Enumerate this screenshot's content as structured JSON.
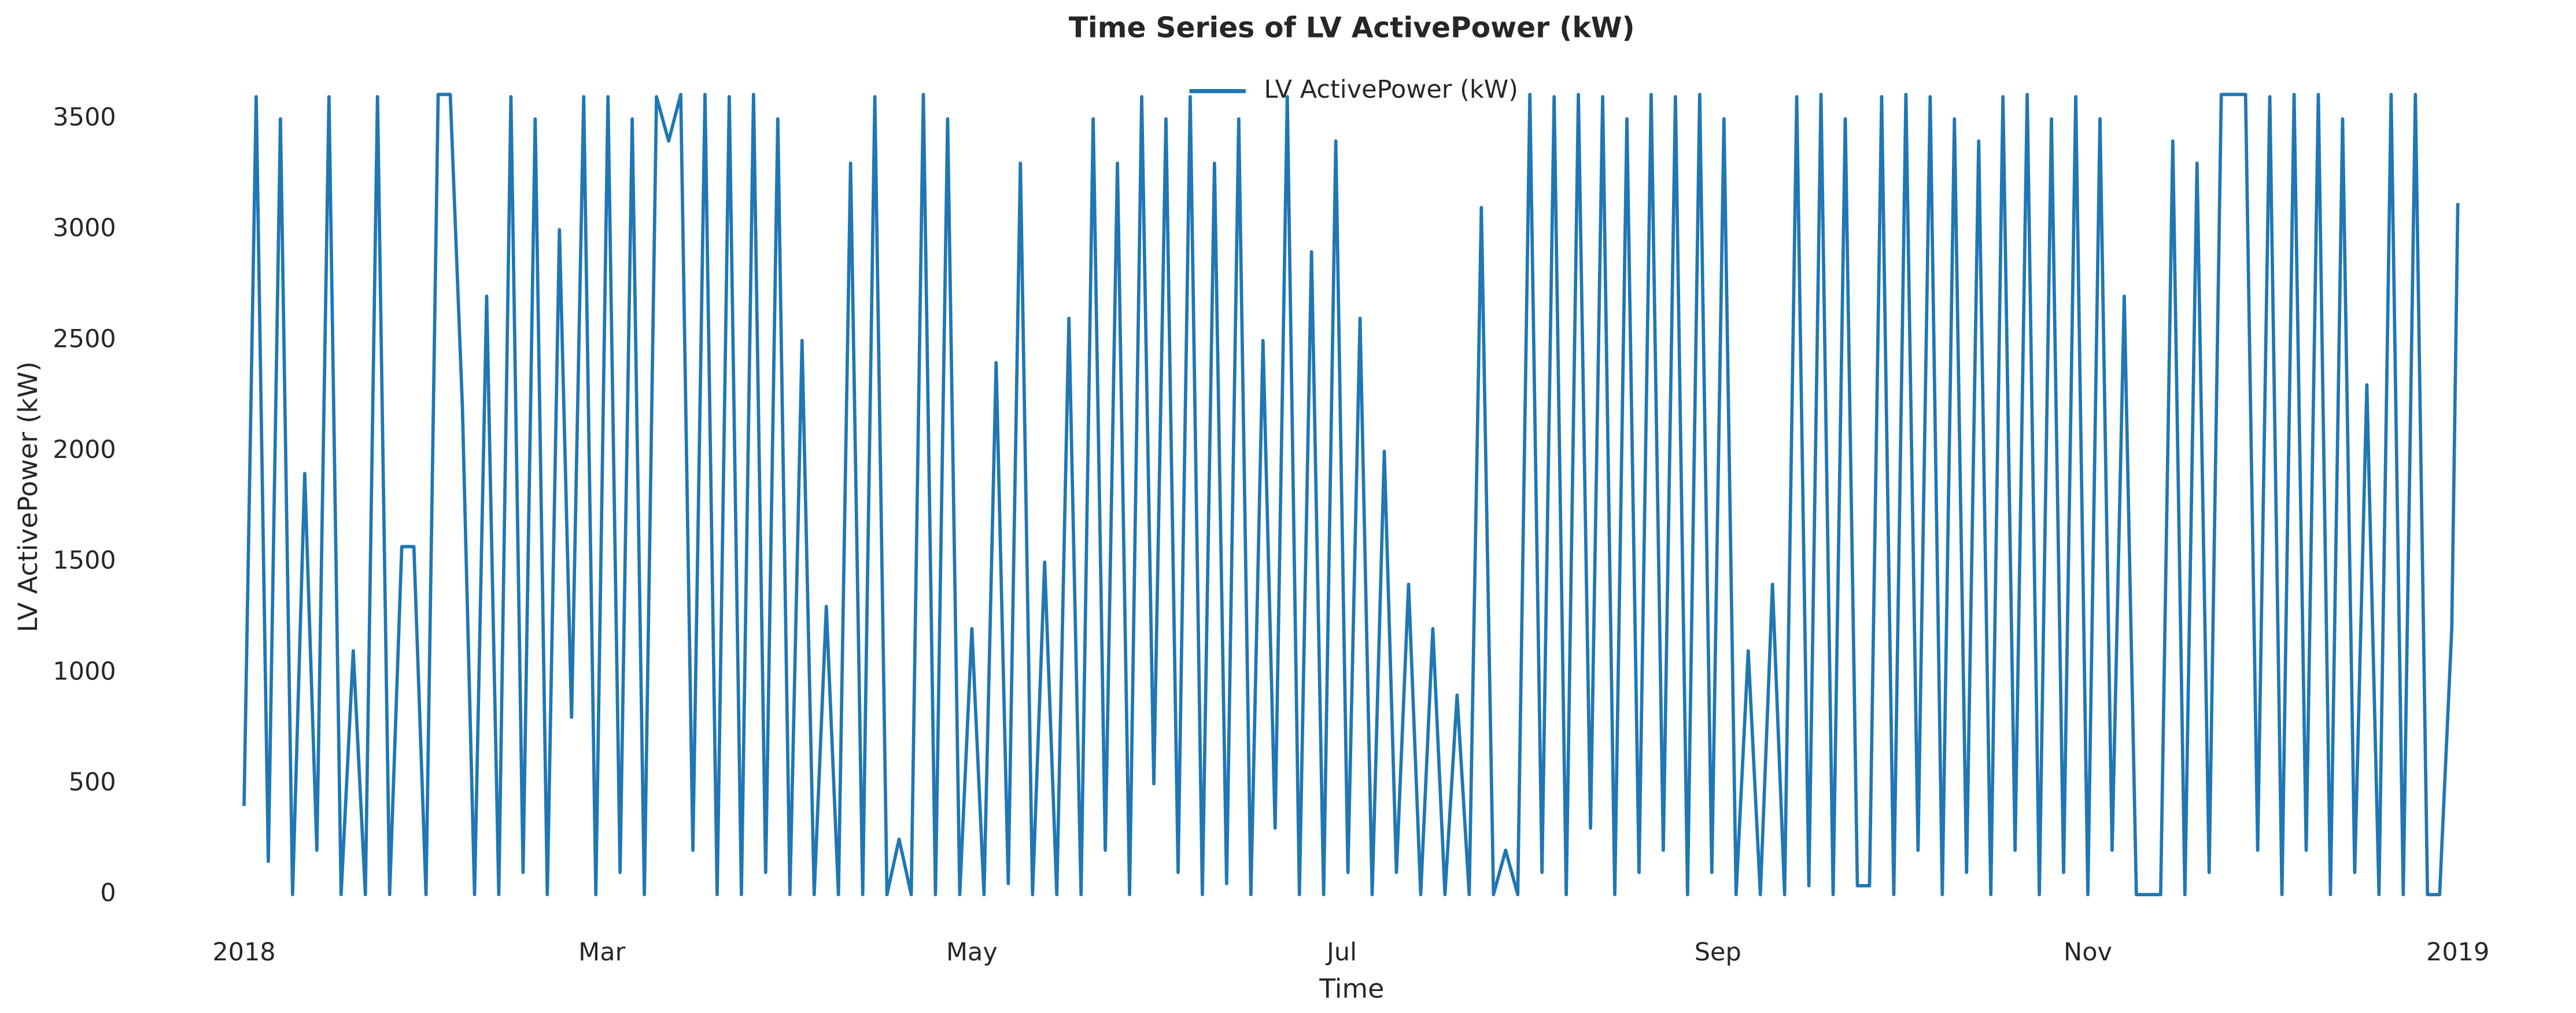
{
  "chart_data": {
    "type": "line",
    "title": "Time Series of LV ActivePower (kW)",
    "xlabel": "Time",
    "ylabel": "LV ActivePower (kW)",
    "x": [
      0,
      2,
      4,
      6,
      8,
      10,
      12,
      14,
      16,
      18,
      20,
      22,
      24,
      26,
      28,
      30,
      32,
      34,
      36,
      38,
      40,
      42,
      44,
      46,
      48,
      50,
      52,
      54,
      56,
      58,
      60,
      62,
      64,
      66,
      68,
      70,
      72,
      74,
      76,
      78,
      80,
      82,
      84,
      86,
      88,
      90,
      92,
      94,
      96,
      98,
      100,
      102,
      104,
      106,
      108,
      110,
      112,
      114,
      116,
      118,
      120,
      122,
      124,
      126,
      128,
      130,
      132,
      134,
      136,
      138,
      140,
      142,
      144,
      146,
      148,
      150,
      152,
      154,
      156,
      158,
      160,
      162,
      164,
      166,
      168,
      170,
      172,
      174,
      176,
      178,
      180,
      182,
      184,
      186,
      188,
      190,
      192,
      194,
      196,
      198,
      200,
      202,
      204,
      206,
      208,
      210,
      212,
      214,
      216,
      218,
      220,
      222,
      224,
      226,
      228,
      230,
      232,
      234,
      236,
      238,
      240,
      242,
      244,
      246,
      248,
      250,
      252,
      254,
      256,
      258,
      260,
      262,
      264,
      266,
      268,
      270,
      272,
      274,
      276,
      278,
      280,
      282,
      284,
      286,
      288,
      290,
      292,
      294,
      296,
      298,
      300,
      302,
      304,
      306,
      308,
      310,
      312,
      314,
      316,
      318,
      320,
      322,
      324,
      326,
      328,
      330,
      332,
      334,
      336,
      338,
      340,
      342,
      344,
      346,
      348,
      350,
      352,
      354,
      356,
      358,
      360,
      362,
      364,
      365
    ],
    "series": [
      {
        "name": "LV ActivePower (kW)",
        "color": "#1f77b4",
        "values": [
          400,
          3600,
          150,
          3500,
          0,
          1900,
          200,
          3600,
          0,
          1100,
          0,
          3600,
          0,
          1570,
          1570,
          0,
          3610,
          3610,
          2200,
          0,
          2700,
          0,
          3600,
          100,
          3500,
          0,
          3000,
          800,
          3600,
          0,
          3600,
          100,
          3500,
          0,
          3600,
          3400,
          3610,
          200,
          3610,
          0,
          3600,
          0,
          3610,
          100,
          3500,
          0,
          2500,
          0,
          1300,
          0,
          3300,
          0,
          3600,
          0,
          250,
          0,
          3610,
          0,
          3500,
          0,
          1200,
          0,
          2400,
          50,
          3300,
          0,
          1500,
          0,
          2600,
          0,
          3500,
          200,
          3300,
          0,
          3600,
          500,
          3500,
          100,
          3600,
          0,
          3300,
          50,
          3500,
          0,
          2500,
          300,
          3600,
          0,
          2900,
          0,
          3400,
          100,
          2600,
          0,
          2000,
          100,
          1400,
          0,
          1200,
          0,
          900,
          0,
          3100,
          0,
          200,
          0,
          3610,
          100,
          3600,
          0,
          3610,
          300,
          3600,
          0,
          3500,
          100,
          3610,
          200,
          3600,
          0,
          3610,
          100,
          3500,
          0,
          1100,
          0,
          1400,
          0,
          3600,
          40,
          3610,
          0,
          3500,
          40,
          40,
          3600,
          0,
          3610,
          200,
          3600,
          0,
          3500,
          100,
          3400,
          0,
          3600,
          200,
          3610,
          0,
          3500,
          100,
          3600,
          0,
          3500,
          200,
          2700,
          0,
          0,
          0,
          3400,
          0,
          3300,
          100,
          3610,
          3610,
          3610,
          200,
          3600,
          0,
          3610,
          200,
          3610,
          0,
          3500,
          100,
          2300,
          0,
          3610,
          0,
          3610,
          0,
          0,
          1200,
          3120
        ]
      }
    ],
    "xlim": [
      -8,
      373
    ],
    "xticks": [
      {
        "value": 0,
        "label": "2018"
      },
      {
        "value": 59,
        "label": "Mar"
      },
      {
        "value": 120,
        "label": "May"
      },
      {
        "value": 181,
        "label": "Jul"
      },
      {
        "value": 243,
        "label": "Sep"
      },
      {
        "value": 304,
        "label": "Nov"
      },
      {
        "value": 365,
        "label": "2019"
      }
    ],
    "ylim": [
      -130,
      3700
    ],
    "yticks": [
      0,
      500,
      1000,
      1500,
      2000,
      2500,
      3000,
      3500
    ],
    "grid": false,
    "legend": "upper center"
  }
}
